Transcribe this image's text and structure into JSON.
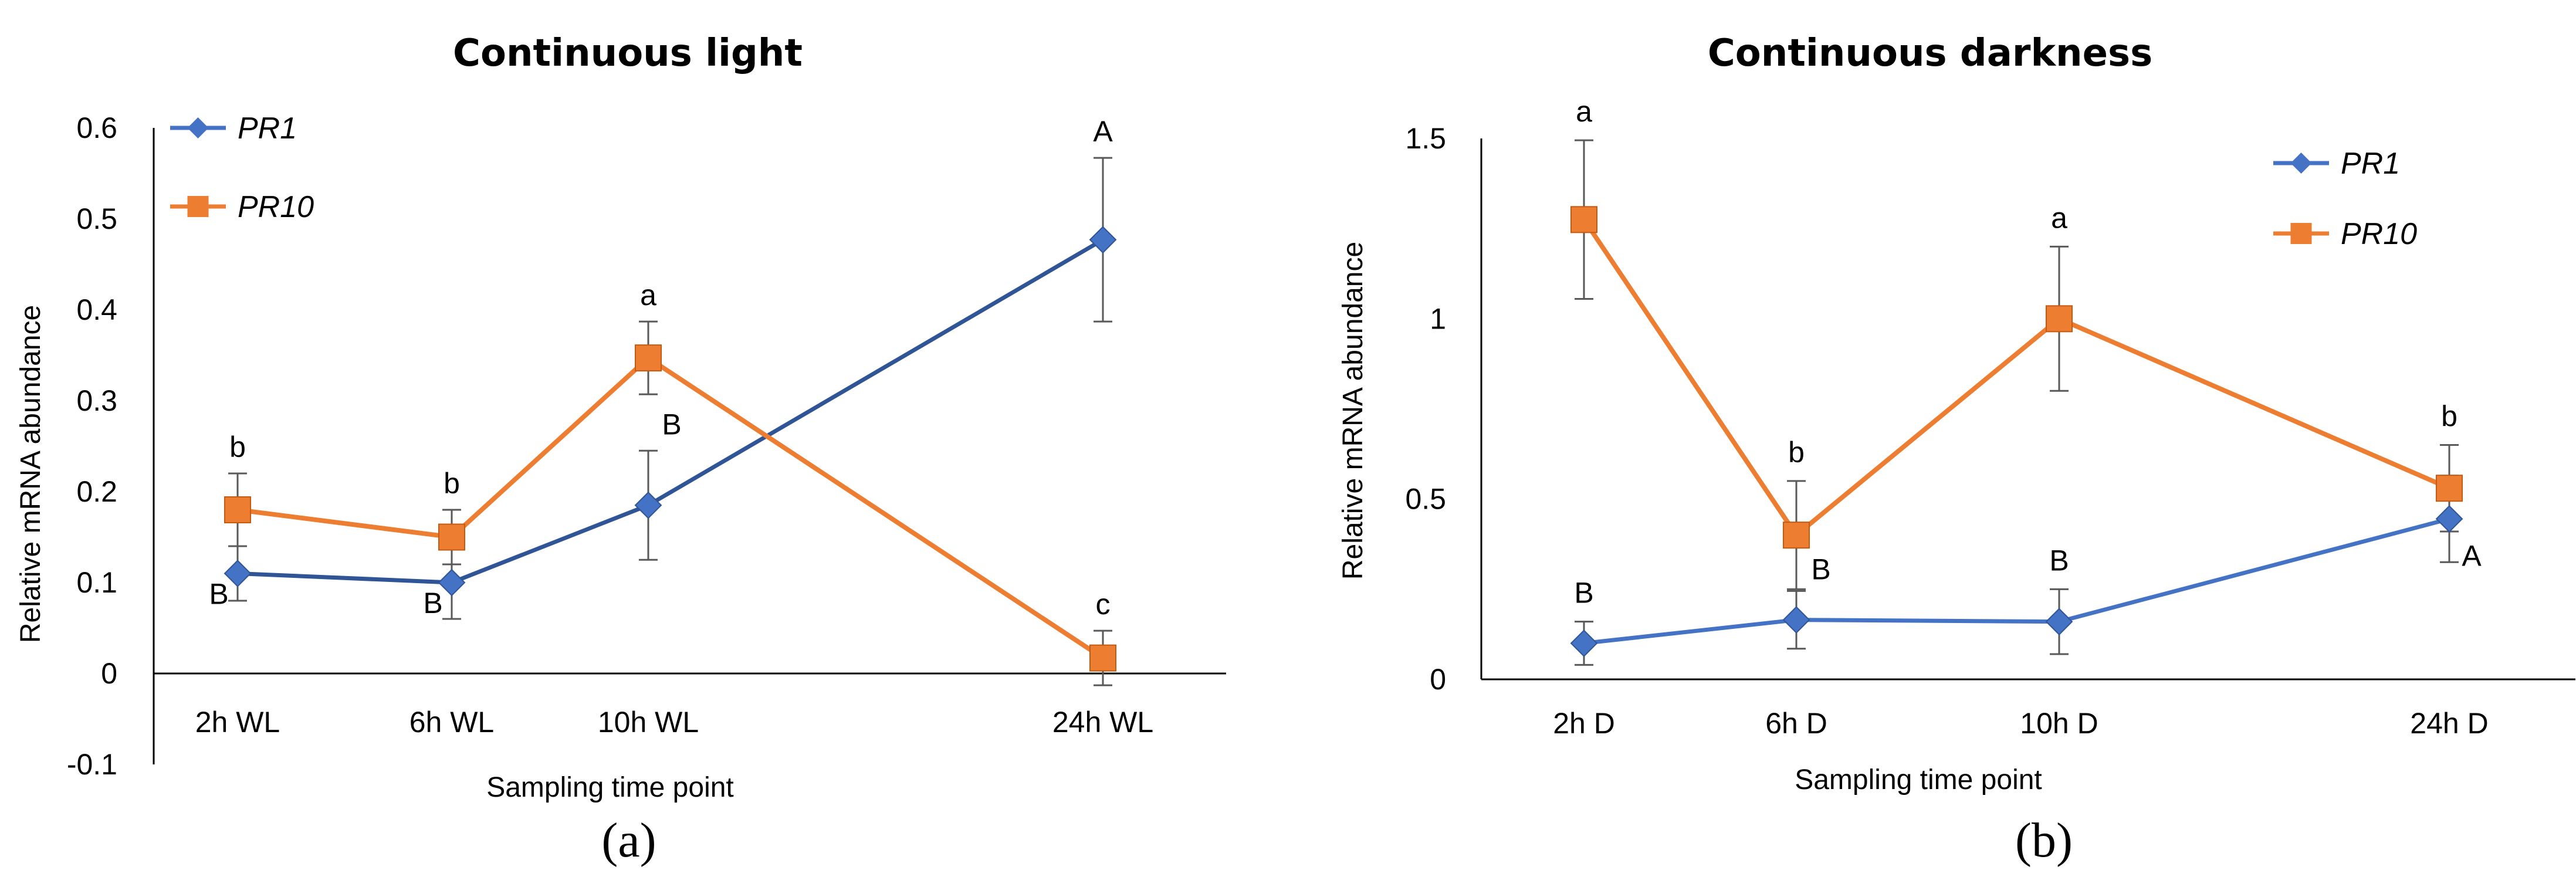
{
  "chart_data": [
    {
      "panel": "(a)",
      "type": "line",
      "title": "Continuous light",
      "xlabel": "Sampling time point",
      "ylabel": "Relative mRNA abundance",
      "ylim": [
        -0.1,
        0.6
      ],
      "yticks": [
        -0.1,
        0,
        0.1,
        0.2,
        0.3,
        0.4,
        0.5,
        0.6
      ],
      "ytick_labels": [
        "-0.1",
        "0",
        "0.1",
        "0.2",
        "0.3",
        "0.4",
        "0.5",
        "0.6"
      ],
      "categories": [
        "2h  WL",
        "6h  WL",
        "10h  WL",
        "24h  WL"
      ],
      "x": [
        2,
        6,
        10,
        24
      ],
      "legend_position": "top-left",
      "series": [
        {
          "name": "PR1",
          "color": "#4472C4",
          "line_color": "#2F5597",
          "marker": "diamond",
          "values": [
            0.11,
            0.1,
            0.185,
            0.477
          ],
          "errors": [
            0.03,
            0.04,
            0.06,
            0.09
          ],
          "letters": [
            "B",
            "B",
            "B",
            "A"
          ],
          "letter_positions": [
            "below-left",
            "below-left",
            "above-right",
            "above"
          ]
        },
        {
          "name": "PR10",
          "color": "#ED7D31",
          "line_color": "#ED7D31",
          "marker": "square",
          "values": [
            0.18,
            0.15,
            0.347,
            0.017
          ],
          "errors": [
            0.04,
            0.03,
            0.04,
            0.03
          ],
          "letters": [
            "b",
            "b",
            "a",
            "c"
          ],
          "letter_positions": [
            "above",
            "above",
            "above",
            "above"
          ]
        }
      ]
    },
    {
      "panel": "(b)",
      "type": "line",
      "title": "Continuous darkness",
      "xlabel": "Sampling time point",
      "ylabel": "Relative mRNA abundance",
      "ylim": [
        0,
        1.5
      ],
      "yticks": [
        0,
        0.5,
        1,
        1.5
      ],
      "ytick_labels": [
        "0",
        "0.5",
        "1",
        "1.5"
      ],
      "categories": [
        "2h  D",
        "6h  D",
        "10h  D",
        "24h  D"
      ],
      "x": [
        2,
        6,
        10,
        24
      ],
      "legend_position": "top-right",
      "series": [
        {
          "name": "PR1",
          "color": "#4472C4",
          "line_color": "#4472C4",
          "marker": "diamond",
          "values": [
            0.1,
            0.165,
            0.16,
            0.445
          ],
          "errors": [
            0.06,
            0.08,
            0.09,
            0.12
          ],
          "letters": [
            "B",
            "B",
            "B",
            "A"
          ],
          "letter_positions": [
            "above",
            "above-right",
            "above",
            "below-right"
          ]
        },
        {
          "name": "PR10",
          "color": "#ED7D31",
          "line_color": "#ED7D31",
          "marker": "square",
          "values": [
            1.275,
            0.4,
            1.0,
            0.53
          ],
          "errors": [
            0.22,
            0.15,
            0.2,
            0.12
          ],
          "letters": [
            "a",
            "b",
            "a",
            "b"
          ],
          "letter_positions": [
            "above",
            "above",
            "above",
            "above"
          ]
        }
      ]
    }
  ]
}
